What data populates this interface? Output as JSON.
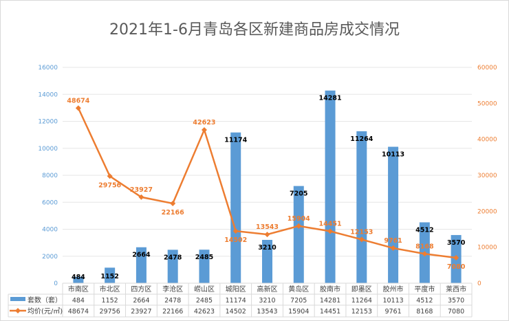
{
  "chart_data": {
    "type": "bar+line",
    "title": "2021年1-6月青岛各区新建商品房成交情况",
    "categories": [
      "市南区",
      "市北区",
      "四方区",
      "李沧区",
      "崂山区",
      "城阳区",
      "高新区",
      "黄岛区",
      "胶南市",
      "即墨区",
      "胶州市",
      "平度市",
      "莱西市"
    ],
    "series": [
      {
        "name": "套数（套）",
        "type": "bar",
        "axis": "left",
        "color": "#5b9bd5",
        "values": [
          484,
          1152,
          2664,
          2478,
          2485,
          11174,
          3210,
          7205,
          14281,
          11264,
          10113,
          4512,
          3570
        ]
      },
      {
        "name": "均价(元/㎡)",
        "type": "line",
        "axis": "right",
        "color": "#ed7d31",
        "values": [
          48674,
          29756,
          23927,
          22166,
          42623,
          14502,
          13543,
          15904,
          14451,
          12153,
          9761,
          8168,
          7080
        ]
      }
    ],
    "left_axis": {
      "ylim": [
        0,
        16000
      ],
      "ticks": [
        0,
        2000,
        4000,
        6000,
        8000,
        10000,
        12000,
        14000,
        16000
      ]
    },
    "right_axis": {
      "ylim": [
        0,
        60000
      ],
      "ticks": [
        0,
        10000,
        20000,
        30000,
        40000,
        50000,
        60000
      ]
    },
    "grid": true,
    "legend": "data-table"
  }
}
